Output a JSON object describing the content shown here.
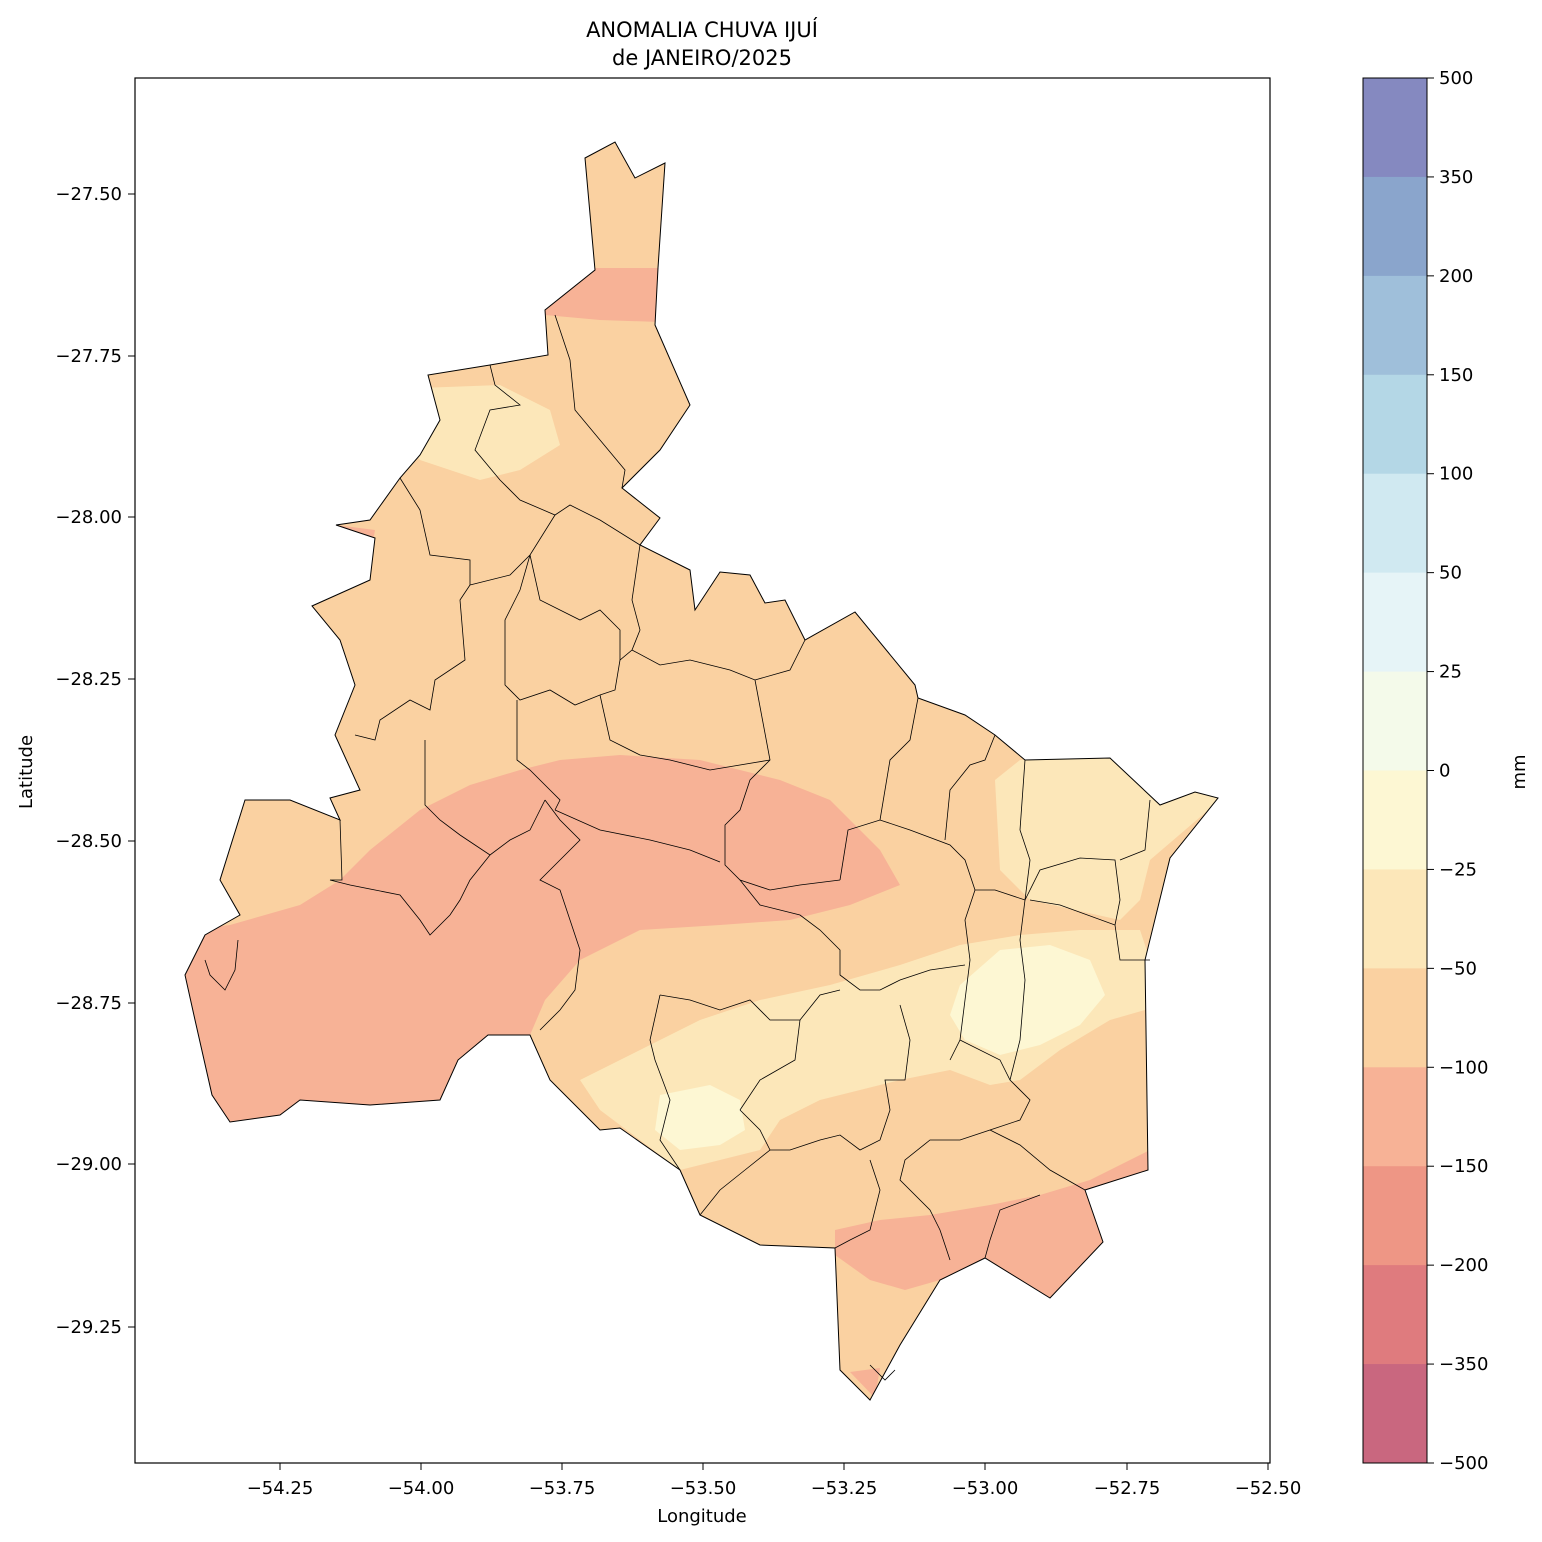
{
  "title_line1": "ANOMALIA CHUVA IJUÍ",
  "title_line2": "de JANEIRO/2025",
  "xlabel": "Longitude",
  "ylabel": "Latitude",
  "colorbar_label": "mm",
  "x_ticks": [
    "−54.25",
    "−54.00",
    "−53.75",
    "−53.50",
    "−53.25",
    "−53.00",
    "−52.75",
    "−52.50"
  ],
  "y_ticks": [
    "−27.50",
    "−27.75",
    "−28.00",
    "−28.25",
    "−28.50",
    "−28.75",
    "−29.00",
    "−29.25"
  ],
  "colorbar_ticks": [
    "500",
    "350",
    "200",
    "150",
    "100",
    "50",
    "25",
    "0",
    "−25",
    "−50",
    "−100",
    "−150",
    "−200",
    "−350",
    "−500"
  ],
  "colorbar_levels": [
    {
      "range": "350 – 500",
      "color": "#8589c0"
    },
    {
      "range": "200 – 350",
      "color": "#8aa5cc"
    },
    {
      "range": "150 – 200",
      "color": "#9fbfda"
    },
    {
      "range": "100 – 150",
      "color": "#b4d7e6"
    },
    {
      "range": "50 – 100",
      "color": "#d0e9f1"
    },
    {
      "range": "25 – 50",
      "color": "#e6f4f7"
    },
    {
      "range": "0 – 25",
      "color": "#f4faea"
    },
    {
      "range": "−25 – 0",
      "color": "#fdf7d3"
    },
    {
      "range": "−50 – −25",
      "color": "#fce7b9"
    },
    {
      "range": "−100 – −50",
      "color": "#fad1a1"
    },
    {
      "range": "−150 – −100",
      "color": "#f7b296"
    },
    {
      "range": "−200 – −150",
      "color": "#ee9685"
    },
    {
      "range": "−350 – −200",
      "color": "#df7b7e"
    },
    {
      "range": "−500 – −350",
      "color": "#c9677f"
    }
  ],
  "chart_data": {
    "type": "heatmap",
    "title": "ANOMALIA CHUVA IJUÍ de JANEIRO/2025",
    "xlabel": "Longitude",
    "ylabel": "Latitude",
    "xlim": [
      -54.5,
      -52.5
    ],
    "ylim": [
      -29.45,
      -27.32
    ],
    "colorbar": {
      "label": "mm",
      "boundaries": [
        -500,
        -350,
        -200,
        -150,
        -100,
        -50,
        -25,
        0,
        25,
        50,
        100,
        150,
        200,
        350,
        500
      ]
    },
    "anomaly_zones": [
      {
        "area": "northern tip and most of the region",
        "range_mm": "−100 to −50"
      },
      {
        "area": "band around lat −27.65",
        "range_mm": "−150 to −100"
      },
      {
        "area": "west / central band (lat −28.4 to −28.9)",
        "range_mm": "−150 to −100"
      },
      {
        "area": "south-east corner and southern lobe",
        "range_mm": "−150 to −100"
      },
      {
        "area": "east and south-central",
        "range_mm": "−50 to −25"
      },
      {
        "area": "small patches near (−53.0, −28.75) and (−53.5, −28.95)",
        "range_mm": "−25 to 0"
      }
    ]
  }
}
